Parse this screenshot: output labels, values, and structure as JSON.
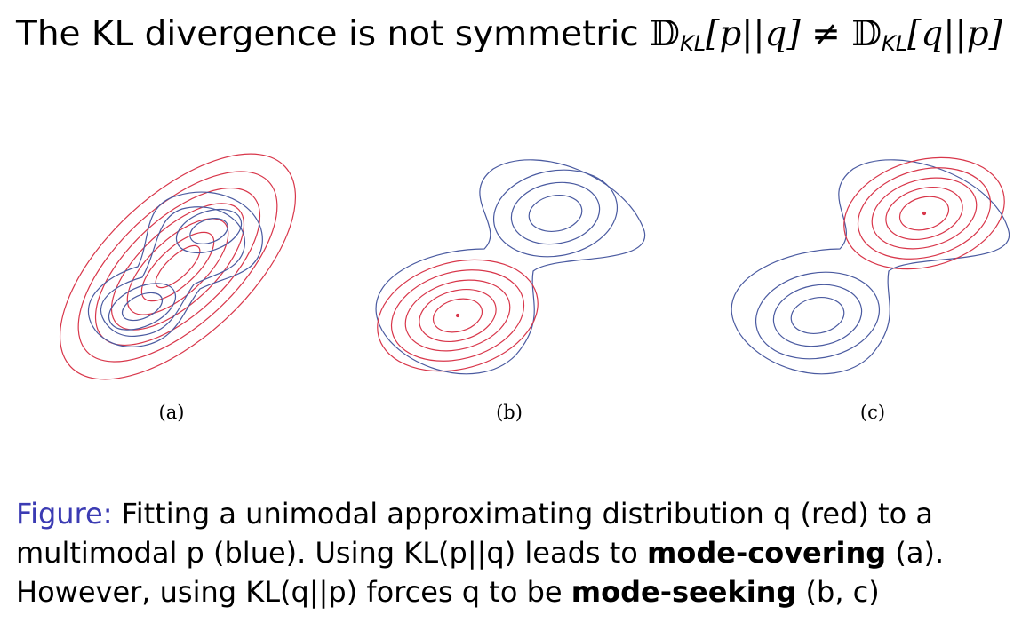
{
  "title": {
    "text_prefix": "The KL divergence is not symmetric ",
    "d": "𝔻",
    "sub": "KL",
    "lhs_args": "[p||q]",
    "neq": " ≠ ",
    "rhs_args": "[q||p]"
  },
  "panels": [
    {
      "id": "a",
      "label": "(a)"
    },
    {
      "id": "b",
      "label": "(b)"
    },
    {
      "id": "c",
      "label": "(c)"
    }
  ],
  "caption": {
    "figure_label": "Figure:",
    "part1": " Fitting a unimodal approximating distribution q (red) to a multimodal p (blue). Using KL(p||q) leads to ",
    "bold1": "mode-covering",
    "part2": " (a). However, using KL(q||p) forces q to be ",
    "bold2": "mode-seeking",
    "part3": " (b, c)"
  },
  "colors": {
    "p_blue": "#4a5aa0",
    "q_red": "#d8364a",
    "figure_label": "#3b3bb3"
  }
}
